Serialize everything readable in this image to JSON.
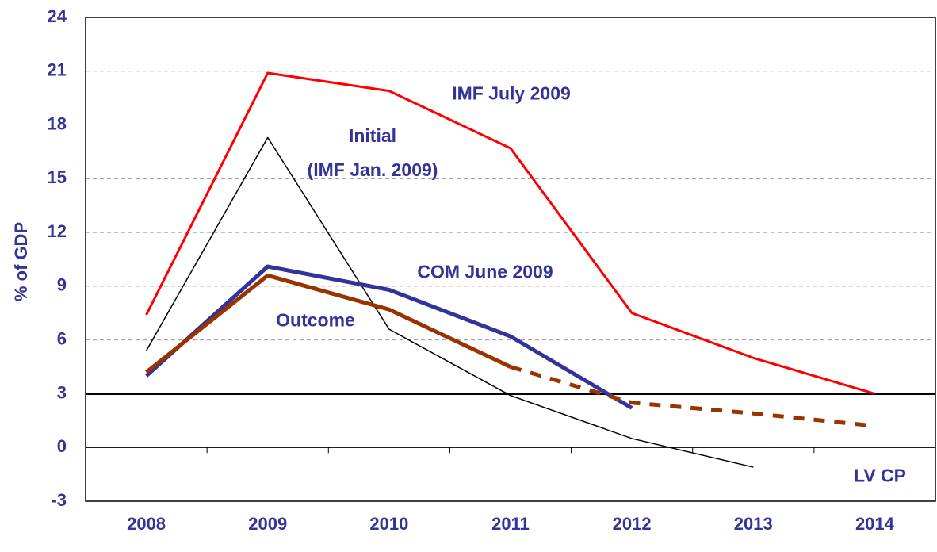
{
  "chart_data": {
    "type": "line",
    "y_label": "% of GDP",
    "categories": [
      "2008",
      "2009",
      "2010",
      "2011",
      "2012",
      "2013",
      "2014"
    ],
    "series": [
      {
        "name": "IMF July 2009",
        "color": "#ff0000",
        "values": [
          7.4,
          20.9,
          19.9,
          16.7,
          7.5,
          5.0,
          3.0
        ]
      },
      {
        "name": "Initial\n(IMF Jan. 2009)",
        "color": "#000000",
        "values": [
          5.4,
          17.3,
          6.6,
          2.9,
          0.5,
          -1.1,
          null
        ]
      },
      {
        "name": "COM June 2009",
        "color": "#333399",
        "values": [
          4.0,
          10.1,
          8.8,
          6.2,
          2.2,
          null,
          null
        ]
      },
      {
        "name": "Outcome",
        "color": "#993300",
        "values": [
          4.2,
          9.6,
          7.7,
          4.5,
          null,
          null,
          null
        ]
      },
      {
        "name": "LV CP",
        "color": "#993300",
        "dashed": true,
        "values": [
          null,
          null,
          null,
          4.5,
          2.5,
          1.9,
          1.2
        ]
      }
    ],
    "reference_line": 3,
    "ylim": [
      -3,
      24
    ],
    "yticks": [
      -3,
      0,
      3,
      6,
      9,
      12,
      15,
      18,
      21,
      24
    ],
    "grid": true
  }
}
